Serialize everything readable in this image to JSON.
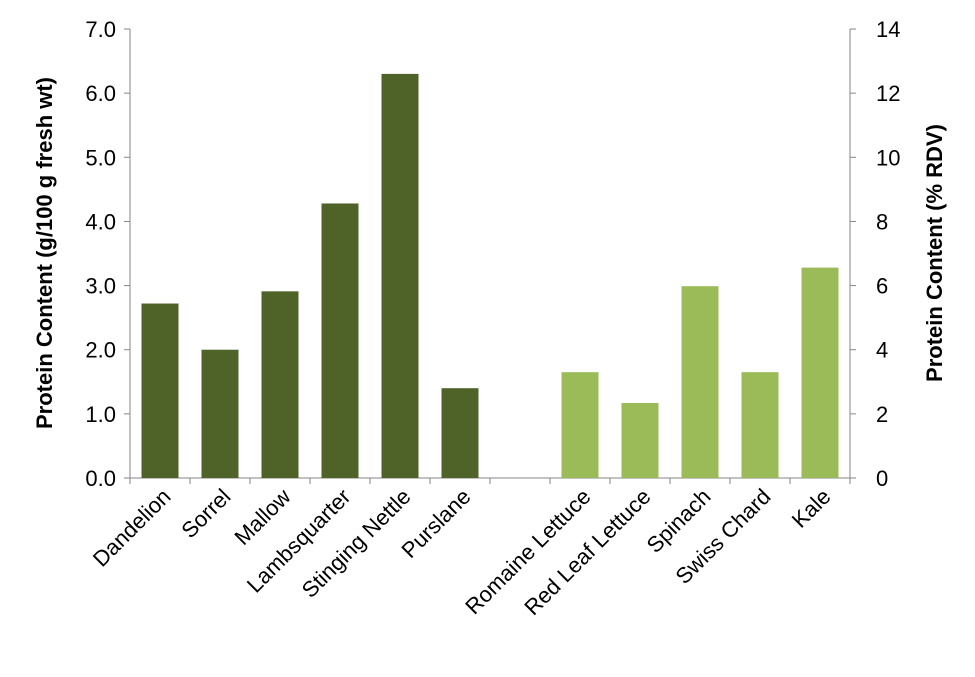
{
  "chart_data": {
    "type": "bar",
    "title": "",
    "categories": [
      "Dandelion",
      "Sorrel",
      "Mallow",
      "Lambsquarter",
      "Stinging Nettle",
      "Purslane",
      "",
      "Romaine Lettuce",
      "Red Leaf Lettuce",
      "Spinach",
      "Swiss Chard",
      "Kale"
    ],
    "values": [
      2.72,
      2.0,
      2.91,
      4.28,
      6.3,
      1.4,
      null,
      1.65,
      1.17,
      2.99,
      1.65,
      3.28
    ],
    "bar_colors": [
      "#4f6228",
      "#4f6228",
      "#4f6228",
      "#4f6228",
      "#4f6228",
      "#4f6228",
      "#4f6228",
      "#9bbb59",
      "#9bbb59",
      "#9bbb59",
      "#9bbb59",
      "#9bbb59"
    ],
    "ylabel": "Protein Content (g/100 g fresh wt)",
    "ylim": [
      0,
      7
    ],
    "yticks": [
      "0.0",
      "1.0",
      "2.0",
      "3.0",
      "4.0",
      "5.0",
      "6.0",
      "7.0"
    ],
    "y2label": "Protein Content (% RDV)",
    "y2lim": [
      0,
      14
    ],
    "y2ticks": [
      "0",
      "2",
      "4",
      "6",
      "8",
      "10",
      "12",
      "14"
    ],
    "grid": false,
    "legend": "none",
    "axis_color": "#868686"
  }
}
